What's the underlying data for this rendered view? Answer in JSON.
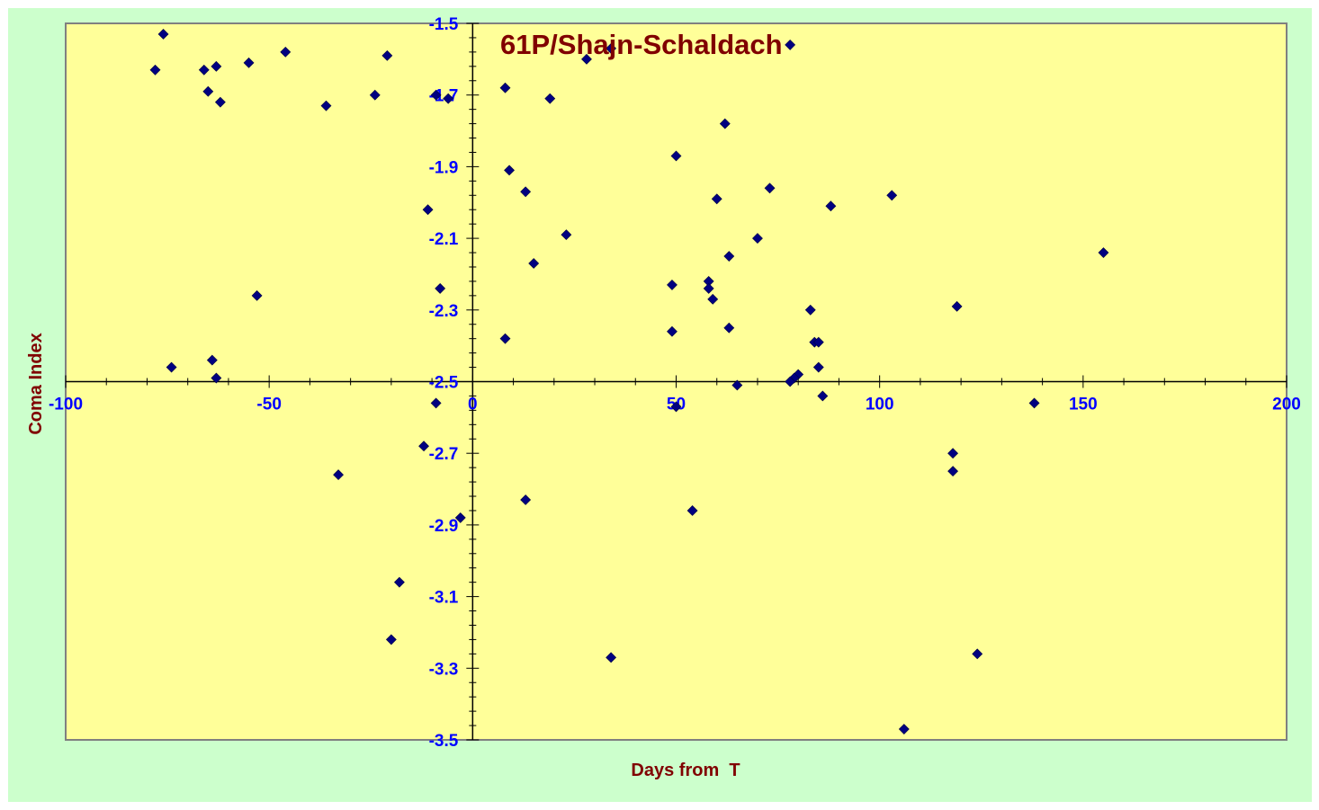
{
  "chart_data": {
    "type": "scatter",
    "title": "61P/Shajn-Schaldach",
    "xlabel": "Days from  T",
    "ylabel": "Coma Index",
    "xlim": [
      -100,
      200
    ],
    "ylim": [
      -3.5,
      -1.5
    ],
    "xticks": [
      -100,
      -50,
      0,
      50,
      100,
      150,
      200
    ],
    "xtick_labels": [
      "-100",
      "-50",
      "0",
      "50",
      "100",
      "150",
      "200"
    ],
    "yticks": [
      -1.5,
      -1.7,
      -1.9,
      -2.1,
      -2.3,
      -2.5,
      -2.7,
      -2.9,
      -3.1,
      -3.3,
      -3.5
    ],
    "ytick_labels": [
      "-1.5",
      "-1.7",
      "-1.9",
      "-2.1",
      "-2.3",
      "-2.5",
      "-2.7",
      "-2.9",
      "-3.1",
      "-3.3",
      "-3.5"
    ],
    "grid": false,
    "legend": "none",
    "colors": {
      "background": "#ccffcc",
      "plot_area": "#ffff99",
      "marker": "#000080",
      "tick_labels": "#0000ff",
      "title": "#800000",
      "axis_titles": "#800000",
      "axis_lines": "#000000"
    },
    "series": [
      {
        "marker": "diamond",
        "x": [
          -76,
          -78,
          -66,
          -63,
          -55,
          -46,
          -21,
          -65,
          -62,
          -24,
          -36,
          -9,
          -6,
          -11,
          -53,
          -8,
          -74,
          -64,
          -63,
          -12,
          -9,
          -33,
          -18,
          -20,
          -3,
          8,
          9,
          13,
          19,
          28,
          34,
          23,
          15,
          8,
          13,
          50,
          62,
          60,
          73,
          78,
          88,
          103,
          70,
          63,
          58,
          49,
          58,
          59,
          155,
          49,
          63,
          83,
          84,
          85,
          119,
          85,
          80,
          79,
          78,
          65,
          86,
          138,
          50,
          118,
          118,
          54,
          124,
          34,
          106
        ],
        "y": [
          -1.53,
          -1.63,
          -1.63,
          -1.62,
          -1.61,
          -1.58,
          -1.59,
          -1.69,
          -1.72,
          -1.7,
          -1.73,
          -1.7,
          -1.71,
          -2.02,
          -2.26,
          -2.24,
          -2.46,
          -2.44,
          -2.49,
          -2.68,
          -2.56,
          -2.76,
          -3.06,
          -3.22,
          -2.88,
          -1.68,
          -1.91,
          -1.97,
          -1.71,
          -1.6,
          -1.57,
          -2.09,
          -2.17,
          -2.38,
          -2.83,
          -1.87,
          -1.78,
          -1.99,
          -1.96,
          -1.56,
          -2.01,
          -1.98,
          -2.1,
          -2.15,
          -2.22,
          -2.23,
          -2.24,
          -2.27,
          -2.14,
          -2.36,
          -2.35,
          -2.3,
          -2.39,
          -2.39,
          -2.29,
          -2.46,
          -2.48,
          -2.49,
          -2.5,
          -2.51,
          -2.54,
          -2.56,
          -2.57,
          -2.7,
          -2.75,
          -2.86,
          -3.26,
          -3.27,
          -3.47
        ]
      }
    ]
  }
}
